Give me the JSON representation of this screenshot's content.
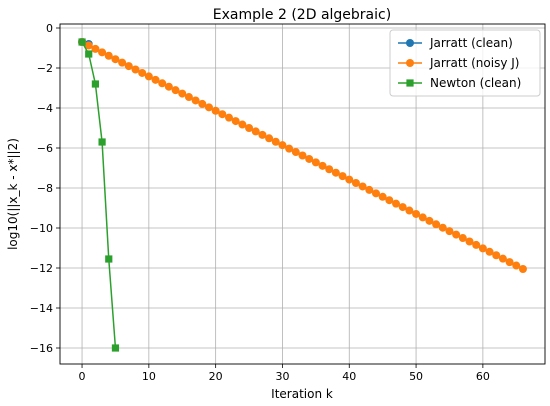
{
  "chart_data": {
    "type": "line",
    "title": "Example 2 (2D algebraic)",
    "xlabel": "Iteration k",
    "ylabel": "log10(||x_k - x*||2)",
    "xlim": [
      -3.3,
      69.3
    ],
    "ylim": [
      -16.8,
      0.2
    ],
    "xticks": [
      0,
      10,
      20,
      30,
      40,
      50,
      60
    ],
    "yticks": [
      0,
      -2,
      -4,
      -6,
      -8,
      -10,
      -12,
      -14,
      -16
    ],
    "grid": true,
    "legend_position": "top-right",
    "series": [
      {
        "name": "Jarratt (clean)",
        "color": "#1f77b4",
        "marker": "circle",
        "x": [
          0,
          1
        ],
        "y": [
          -0.7,
          -0.8
        ]
      },
      {
        "name": "Jarratt (noisy J)",
        "color": "#ff7f0e",
        "marker": "circle",
        "x_start": 0,
        "x_end": 66,
        "y_start": -0.7,
        "y_end": -12.05
      },
      {
        "name": "Newton (clean)",
        "color": "#2ca02c",
        "marker": "square",
        "x": [
          0,
          1,
          2,
          3,
          4,
          5
        ],
        "y": [
          -0.7,
          -1.3,
          -2.8,
          -5.7,
          -11.55,
          -16.0
        ]
      }
    ]
  }
}
